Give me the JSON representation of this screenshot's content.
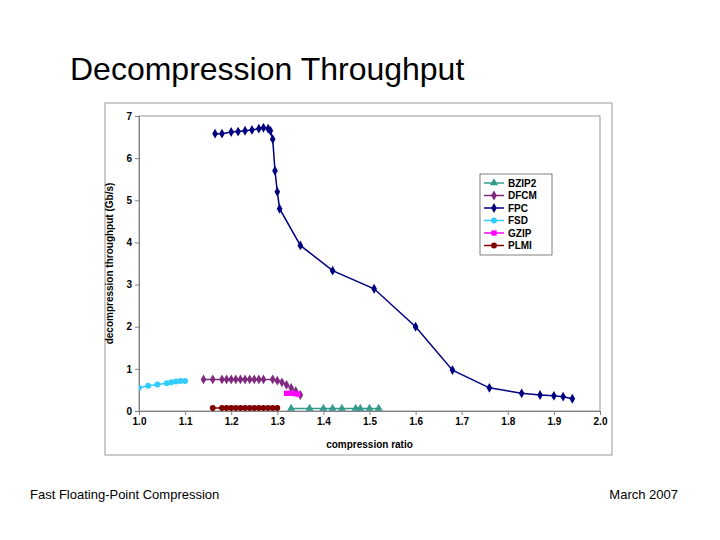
{
  "chart_data": {
    "type": "line",
    "title": "Decompression Throughput",
    "x_label": "compression ratio",
    "y_label": "decompression throughput (Gb/s)",
    "xlim": [
      1,
      2
    ],
    "xticks": [
      {
        "value": 1,
        "label": "1.0"
      },
      1.1,
      1.2,
      1.3,
      1.4,
      1.5,
      1.6,
      1.7,
      1.8,
      1.9,
      {
        "value": 2,
        "label": "2.0"
      }
    ],
    "ylim": [
      0,
      7
    ],
    "yticks": [
      0,
      1,
      2,
      3,
      4,
      5,
      6,
      7
    ],
    "grid": false,
    "legend": "upper right",
    "series": [
      {
        "name": "BZIP2",
        "color": "#339a8a",
        "marker": "triangle",
        "x": [
          1.33,
          1.37,
          1.4,
          1.42,
          1.44,
          1.47,
          1.48,
          1.5,
          1.52
        ],
        "values": [
          0.06,
          0.06,
          0.06,
          0.06,
          0.06,
          0.06,
          0.06,
          0.06,
          0.06
        ]
      },
      {
        "name": "DFCM",
        "color": "#7f2a7f",
        "marker": "diamond",
        "x": [
          1.14,
          1.16,
          1.18,
          1.19,
          1.2,
          1.21,
          1.22,
          1.23,
          1.24,
          1.25,
          1.26,
          1.27,
          1.29,
          1.3,
          1.31,
          1.32,
          1.33,
          1.34,
          1.35
        ],
        "values": [
          0.75,
          0.75,
          0.75,
          0.75,
          0.75,
          0.75,
          0.75,
          0.75,
          0.75,
          0.75,
          0.75,
          0.75,
          0.75,
          0.72,
          0.68,
          0.62,
          0.55,
          0.47,
          0.38
        ]
      },
      {
        "name": "FPC",
        "color": "#000080",
        "marker": "diamond",
        "x": [
          1.165,
          1.18,
          1.2,
          1.215,
          1.23,
          1.245,
          1.26,
          1.27,
          1.28,
          1.285,
          1.29,
          1.295,
          1.3,
          1.305,
          1.35,
          1.42,
          1.51,
          1.6,
          1.68,
          1.76,
          1.83,
          1.87,
          1.9,
          1.92,
          1.94
        ],
        "values": [
          6.58,
          6.58,
          6.62,
          6.63,
          6.65,
          6.67,
          6.7,
          6.72,
          6.7,
          6.65,
          6.45,
          5.7,
          5.2,
          4.8,
          3.93,
          3.33,
          2.9,
          2.0,
          0.97,
          0.55,
          0.42,
          0.38,
          0.36,
          0.34,
          0.29
        ]
      },
      {
        "name": "FSD",
        "color": "#33ccff",
        "marker": "circle",
        "x": [
          1.0,
          1.02,
          1.04,
          1.06,
          1.07,
          1.08,
          1.09,
          1.1
        ],
        "values": [
          0.55,
          0.6,
          0.63,
          0.66,
          0.68,
          0.7,
          0.71,
          0.71
        ]
      },
      {
        "name": "GZIP",
        "color": "#ff00ff",
        "marker": "square",
        "x": [
          1.32,
          1.33,
          1.34,
          1.345
        ],
        "values": [
          0.42,
          0.42,
          0.41,
          0.4
        ]
      },
      {
        "name": "PLMI",
        "color": "#800000",
        "marker": "circle",
        "x": [
          1.16,
          1.18,
          1.19,
          1.2,
          1.21,
          1.22,
          1.23,
          1.24,
          1.25,
          1.26,
          1.27,
          1.28,
          1.29,
          1.3
        ],
        "values": [
          0.07,
          0.07,
          0.07,
          0.07,
          0.07,
          0.07,
          0.07,
          0.07,
          0.07,
          0.07,
          0.07,
          0.07,
          0.07,
          0.07
        ]
      }
    ]
  },
  "footer": {
    "left": "Fast Floating-Point Compression",
    "right": "March 2007"
  }
}
